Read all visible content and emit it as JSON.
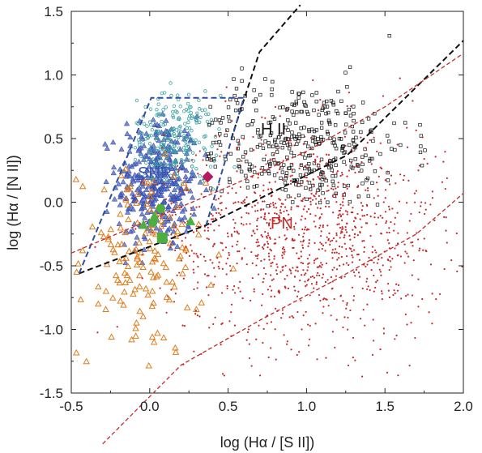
{
  "chart_data": {
    "type": "scatter",
    "title": "",
    "xlabel": "log (Hα / [S II])",
    "ylabel": "log (Hα / [N II])",
    "xlim": [
      -0.5,
      2.0
    ],
    "ylim": [
      -1.5,
      1.5
    ],
    "x_ticks": [
      "-0.5",
      "0.0",
      "0.5",
      "1.0",
      "1.5",
      "2.0"
    ],
    "y_ticks": [
      "-1.5",
      "-1.0",
      "-0.5",
      "0.0",
      "0.5",
      "1.0",
      "1.5"
    ],
    "grid": false,
    "annotations": {
      "snr": "SNR",
      "hii": "H II",
      "pn": "PN"
    },
    "colors": {
      "snr": "#3a55b0",
      "hii": "#111111",
      "pn": "#c42a2a",
      "snr_outside": "#e07b1a",
      "snr_green": "#3aa0a0",
      "special": "#4caf3f",
      "magenta": "#b5195f"
    },
    "boundaries": [
      {
        "name": "hii-boundary",
        "style": "dashed",
        "color": "#111111",
        "points": [
          [
            -0.45,
            -0.56
          ],
          [
            0.36,
            -0.18
          ],
          [
            1.26,
            0.37
          ],
          [
            2.0,
            1.27
          ]
        ]
      },
      {
        "name": "hii-upper-boundary",
        "style": "dashed",
        "color": "#111111",
        "points": [
          [
            0.52,
            0.5
          ],
          [
            0.7,
            1.18
          ],
          [
            0.96,
            1.55
          ]
        ]
      },
      {
        "name": "snr-region",
        "style": "dashed",
        "color": "#2b4fa0",
        "points": [
          [
            -0.45,
            -0.56
          ],
          [
            0.01,
            0.82
          ],
          [
            0.6,
            0.82
          ],
          [
            0.36,
            -0.18
          ]
        ]
      },
      {
        "name": "pn-upper-boundary",
        "style": "dashed",
        "color": "#c42a2a",
        "points": [
          [
            -0.5,
            -0.4
          ],
          [
            0.0,
            -0.14
          ],
          [
            0.5,
            0.12
          ],
          [
            1.0,
            0.4
          ],
          [
            1.5,
            0.75
          ],
          [
            2.0,
            1.17
          ]
        ]
      },
      {
        "name": "pn-lower-boundary",
        "style": "dashed",
        "color": "#c42a2a",
        "points": [
          [
            -0.3,
            -1.9
          ],
          [
            0.2,
            -1.28
          ],
          [
            0.7,
            -0.93
          ],
          [
            1.2,
            -0.6
          ],
          [
            1.7,
            -0.25
          ],
          [
            2.0,
            0.07
          ]
        ]
      }
    ],
    "series": [
      {
        "marker": "square",
        "color": "#4caf3f",
        "size": 13,
        "points": [
          [
            0.08,
            -0.28
          ]
        ]
      },
      {
        "marker": "circle",
        "color": "#4caf3f",
        "size": 11,
        "points": [
          [
            0.07,
            -0.05
          ],
          [
            0.02,
            -0.16
          ]
        ]
      },
      {
        "marker": "triangle",
        "color": "#4caf3f",
        "size": 12,
        "points": [
          [
            -0.04,
            -0.18
          ],
          [
            0.03,
            -0.11
          ],
          [
            0.26,
            -0.15
          ]
        ]
      },
      {
        "marker": "diamond",
        "color": "#b5195f",
        "size": 12,
        "points": [
          [
            0.37,
            0.2
          ]
        ]
      }
    ],
    "clouds": [
      {
        "name": "snr-blue",
        "marker": "triangle-filled",
        "color": "#4a63c8",
        "n": 360,
        "x_mean": 0.05,
        "x_sd": 0.13,
        "y_mean": 0.15,
        "y_sd": 0.27,
        "x_range": [
          -0.45,
          0.42
        ],
        "y_range": [
          -0.55,
          0.75
        ]
      },
      {
        "name": "snr-green",
        "marker": "circle-open",
        "color": "#3aa0a0",
        "n": 230,
        "x_mean": 0.15,
        "x_sd": 0.14,
        "y_mean": 0.48,
        "y_sd": 0.18,
        "x_range": [
          -0.1,
          0.75
        ],
        "y_range": [
          0.1,
          1.2
        ]
      },
      {
        "name": "snr-orange",
        "marker": "triangle-open",
        "color": "#e07b1a",
        "n": 150,
        "x_mean": -0.05,
        "x_sd": 0.2,
        "y_mean": -0.45,
        "y_sd": 0.38,
        "x_range": [
          -0.48,
          0.55
        ],
        "y_range": [
          -1.35,
          0.45
        ]
      },
      {
        "name": "hii",
        "marker": "square-open",
        "color": "#111111",
        "n": 380,
        "x_mean": 0.95,
        "x_sd": 0.35,
        "y_mean": 0.45,
        "y_sd": 0.25,
        "x_range": [
          0.35,
          2.0
        ],
        "y_range": [
          -0.05,
          1.35
        ]
      },
      {
        "name": "pn",
        "marker": "dot",
        "color": "#c42a2a",
        "n": 1100,
        "x_mean": 1.0,
        "x_sd": 0.45,
        "y_mean": -0.25,
        "y_sd": 0.42,
        "x_range": [
          -0.4,
          2.0
        ],
        "y_range": [
          -1.45,
          1.1
        ]
      }
    ]
  }
}
